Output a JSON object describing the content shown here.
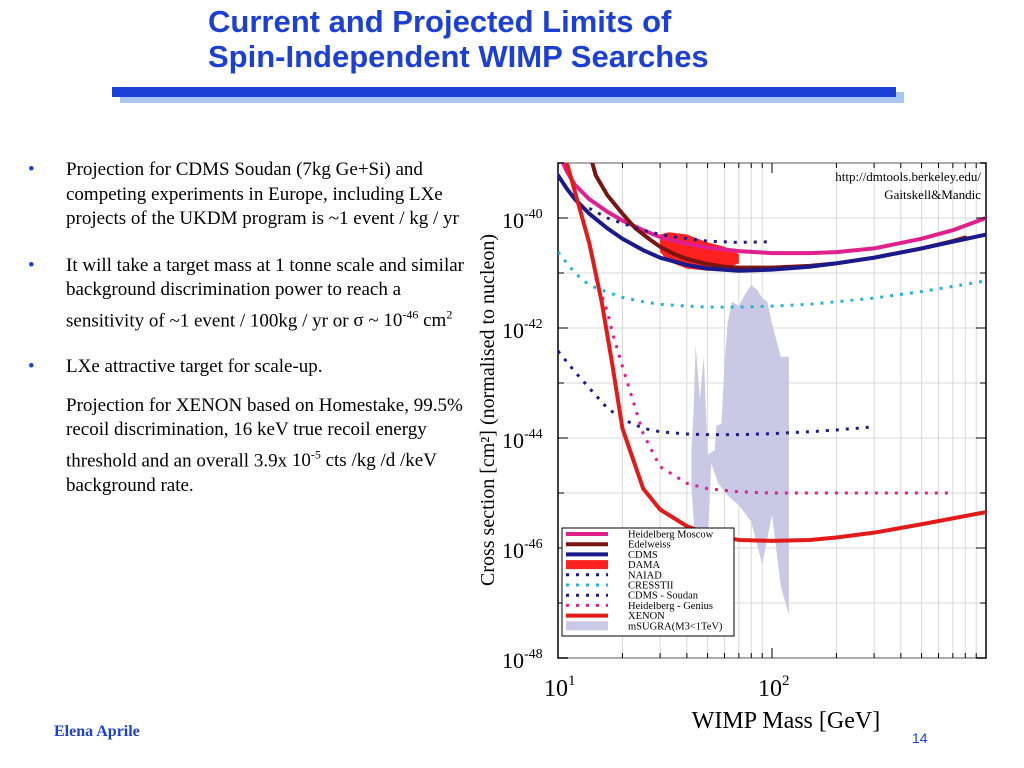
{
  "slide": {
    "title_line1": "Current and Projected Limits of",
    "title_line2": "Spin-Independent WIMP Searches",
    "bullets": [
      "Projection for CDMS Soudan (7kg Ge+Si) and competing experiments in Europe, including LXe projects of the UKDM program  is ~1 event / kg / yr",
      "It will take a target mass at 1 tonne scale and similar background discrimination power to reach a sensitivity of ~1 event / 100kg / yr or",
      "LXe attractive target for scale-up.",
      "Projection for  XENON  based on Homestake, 99.5% recoil discrimination, 16 keV true recoil energy threshold and an overall  3.9x"
    ],
    "sigma_text": {
      "prefix": "σ ~ 10",
      "exp": "-46",
      "suffix": " cm",
      "exp2": "2"
    },
    "rate_text": {
      "prefix": "10",
      "exp": "-5",
      "suffix": " cts /kg /d /keV background rate."
    },
    "bullet_symbol": "•",
    "author": "Elena Aprile",
    "page_number": "14"
  },
  "chart_data": {
    "type": "line",
    "xlabel": "WIMP Mass [GeV]",
    "ylabel": "Cross  section [cm²] (normalised to nucleon)",
    "x_scale": "log",
    "y_scale": "log",
    "xlim": [
      10,
      1000
    ],
    "ylim": [
      1e-48,
      1e-39
    ],
    "x_ticks": [
      {
        "base": "10",
        "exp": "1",
        "value": 10
      },
      {
        "base": "10",
        "exp": "2",
        "value": 100
      }
    ],
    "y_ticks": [
      {
        "base": "10",
        "exp": "-40",
        "value": 1e-40
      },
      {
        "base": "10",
        "exp": "-42",
        "value": 1e-42
      },
      {
        "base": "10",
        "exp": "-44",
        "value": 1e-44
      },
      {
        "base": "10",
        "exp": "-46",
        "value": 1e-46
      },
      {
        "base": "10",
        "exp": "-48",
        "value": 1e-48
      }
    ],
    "grid": true,
    "legend_position": "bottom-left",
    "annotation": [
      "http://dmtools.berkeley.edu/",
      "Gaitskell&Mandic"
    ],
    "series": [
      {
        "name": "Heidelberg Moscow",
        "style": "solid",
        "color": "#e0208c",
        "x": [
          10,
          11,
          12,
          14,
          17,
          20,
          25,
          30,
          40,
          50,
          70,
          100,
          150,
          200,
          300,
          500,
          700,
          1000
        ],
        "y": [
          1.6e-39,
          7e-40,
          4e-40,
          2.2e-40,
          1.3e-40,
          9e-41,
          6e-41,
          4.5e-41,
          3.4e-41,
          2.9e-41,
          2.5e-41,
          2.3e-41,
          2.3e-41,
          2.4e-41,
          2.8e-41,
          4.2e-41,
          6e-41,
          1e-40
        ]
      },
      {
        "name": "Edelweiss",
        "style": "solid",
        "color": "#7a1410",
        "x": [
          14,
          15,
          17,
          20,
          23,
          27,
          30,
          35,
          40,
          50,
          60,
          70,
          100,
          150,
          200,
          300,
          500,
          700,
          800
        ],
        "y": [
          1.6e-39,
          6e-40,
          2.6e-40,
          1.2e-40,
          6.5e-41,
          4e-41,
          3e-41,
          2.2e-41,
          1.8e-41,
          1.45e-41,
          1.3e-41,
          1.25e-41,
          1.25e-41,
          1.35e-41,
          1.5e-41,
          1.9e-41,
          2.8e-41,
          3.8e-41,
          4.4e-41
        ]
      },
      {
        "name": "CDMS",
        "style": "solid",
        "color": "#1a1a8c",
        "x": [
          10,
          11,
          12,
          14,
          17,
          20,
          25,
          30,
          40,
          50,
          70,
          100,
          150,
          200,
          300,
          500,
          1000
        ],
        "y": [
          6e-40,
          3.4e-40,
          2.2e-40,
          1.2e-40,
          6.5e-41,
          4.2e-41,
          2.6e-41,
          1.9e-41,
          1.4e-41,
          1.2e-41,
          1.1e-41,
          1.15e-41,
          1.3e-41,
          1.5e-41,
          1.9e-41,
          2.8e-41,
          5e-41
        ]
      },
      {
        "name": "NAIAD",
        "style": "dotted",
        "color": "#1a1a8c",
        "x": [
          14,
          17,
          20,
          25,
          30,
          40,
          50,
          70,
          100
        ],
        "y": [
          1.5e-40,
          1e-40,
          8e-41,
          6e-41,
          5e-41,
          4.2e-41,
          3.8e-41,
          3.6e-41,
          3.7e-41
        ]
      },
      {
        "name": "CRESSTII",
        "style": "dotted",
        "color": "#26b6d2",
        "x": [
          10,
          12,
          14,
          17,
          20,
          25,
          30,
          40,
          50,
          70,
          100,
          150,
          200,
          300,
          500,
          700,
          1000
        ],
        "y": [
          2.4e-41,
          1e-41,
          6e-42,
          4.5e-42,
          3.6e-42,
          3e-42,
          2.7e-42,
          2.5e-42,
          2.4e-42,
          2.4e-42,
          2.5e-42,
          2.7e-42,
          3e-42,
          3.5e-42,
          4.6e-42,
          5.7e-42,
          7.2e-42
        ]
      },
      {
        "name": "CDMS - Soudan",
        "style": "dotted",
        "color": "#1a1a8c",
        "x": [
          10,
          12,
          15,
          17,
          20,
          25,
          30,
          40,
          50,
          70,
          100,
          150,
          200,
          300
        ],
        "y": [
          3.8e-43,
          1.6e-43,
          6e-44,
          3.5e-44,
          2.2e-44,
          1.5e-44,
          1.3e-44,
          1.18e-44,
          1.15e-44,
          1.15e-44,
          1.2e-44,
          1.3e-44,
          1.4e-44,
          1.6e-44
        ]
      },
      {
        "name": "Heidelberg - Genius",
        "style": "dotted",
        "color": "#e0208c",
        "x": [
          15,
          17,
          18,
          20,
          25,
          30,
          40,
          50,
          70,
          100,
          150,
          200,
          300,
          500,
          700
        ],
        "y": [
          8e-42,
          2e-42,
          8e-43,
          2e-43,
          1.2e-44,
          3e-45,
          1.5e-45,
          1.2e-45,
          1.05e-45,
          1e-45,
          1e-45,
          1e-45,
          1e-45,
          1e-45,
          1e-45
        ]
      },
      {
        "name": "XENON",
        "style": "solid",
        "color": "#e31a1a",
        "x": [
          11,
          12,
          14,
          16,
          18,
          20,
          25,
          30,
          40,
          50,
          70,
          100,
          150,
          200,
          300,
          500,
          1000
        ],
        "y": [
          1e-39,
          3e-40,
          3.5e-41,
          3e-42,
          2e-43,
          1.5e-44,
          1.2e-45,
          5e-46,
          2.5e-46,
          1.8e-46,
          1.4e-46,
          1.35e-46,
          1.4e-46,
          1.55e-46,
          1.9e-46,
          2.7e-46,
          4.5e-46
        ]
      }
    ],
    "regions": [
      {
        "name": "DAMA",
        "color": "#ff2020",
        "x": [
          30,
          33,
          40,
          50,
          60,
          70,
          70,
          60,
          50,
          40,
          33,
          30
        ],
        "y": [
          5e-41,
          5.5e-41,
          5e-41,
          3.6e-41,
          3e-41,
          2.2e-41,
          1.5e-41,
          1.2e-41,
          1.1e-41,
          1.2e-41,
          1.6e-41,
          2.4e-41
        ]
      },
      {
        "name": "mSUGRA(M3<1TeV)",
        "color": "#c9c9e6",
        "x": [
          42,
          44,
          48,
          50,
          52,
          56,
          62,
          70,
          80,
          90,
          100,
          110,
          120,
          120,
          110,
          100,
          95,
          90,
          85,
          80,
          75,
          70,
          65,
          62,
          60,
          58,
          55,
          54,
          50,
          48,
          46,
          44,
          43,
          42
        ],
        "y": [
          1.3e-45,
          1e-46,
          8e-47,
          1e-46,
          3.5e-45,
          1.5e-45,
          9e-46,
          6e-46,
          3e-46,
          5e-47,
          4e-46,
          2e-47,
          6e-48,
          3e-43,
          3e-43,
          1.2e-42,
          3e-42,
          3.5e-42,
          5e-42,
          6e-42,
          4.2e-42,
          2.5e-42,
          3e-42,
          1.2e-42,
          2.2e-43,
          1.8e-44,
          1.7e-44,
          6e-45,
          5e-45,
          3e-43,
          5e-44,
          5e-43,
          3e-44,
          6e-45
        ]
      }
    ],
    "legend": [
      {
        "label": "Heidelberg Moscow",
        "style": "solid",
        "color": "#e0208c"
      },
      {
        "label": "Edelweiss",
        "style": "solid",
        "color": "#7a1410"
      },
      {
        "label": "CDMS",
        "style": "solid",
        "color": "#1a1a8c"
      },
      {
        "label": "DAMA",
        "style": "fill",
        "color": "#ff2020"
      },
      {
        "label": "NAIAD",
        "style": "dotted",
        "color": "#1a1a8c"
      },
      {
        "label": "CRESSTII",
        "style": "dotted",
        "color": "#26b6d2"
      },
      {
        "label": "CDMS - Soudan",
        "style": "dotted",
        "color": "#1a1a8c"
      },
      {
        "label": "Heidelberg - Genius",
        "style": "dotted",
        "color": "#e0208c"
      },
      {
        "label": "XENON",
        "style": "solid",
        "color": "#e31a1a"
      },
      {
        "label": "mSUGRA(M3<1TeV)",
        "style": "fill",
        "color": "#c9c9e6"
      }
    ]
  }
}
